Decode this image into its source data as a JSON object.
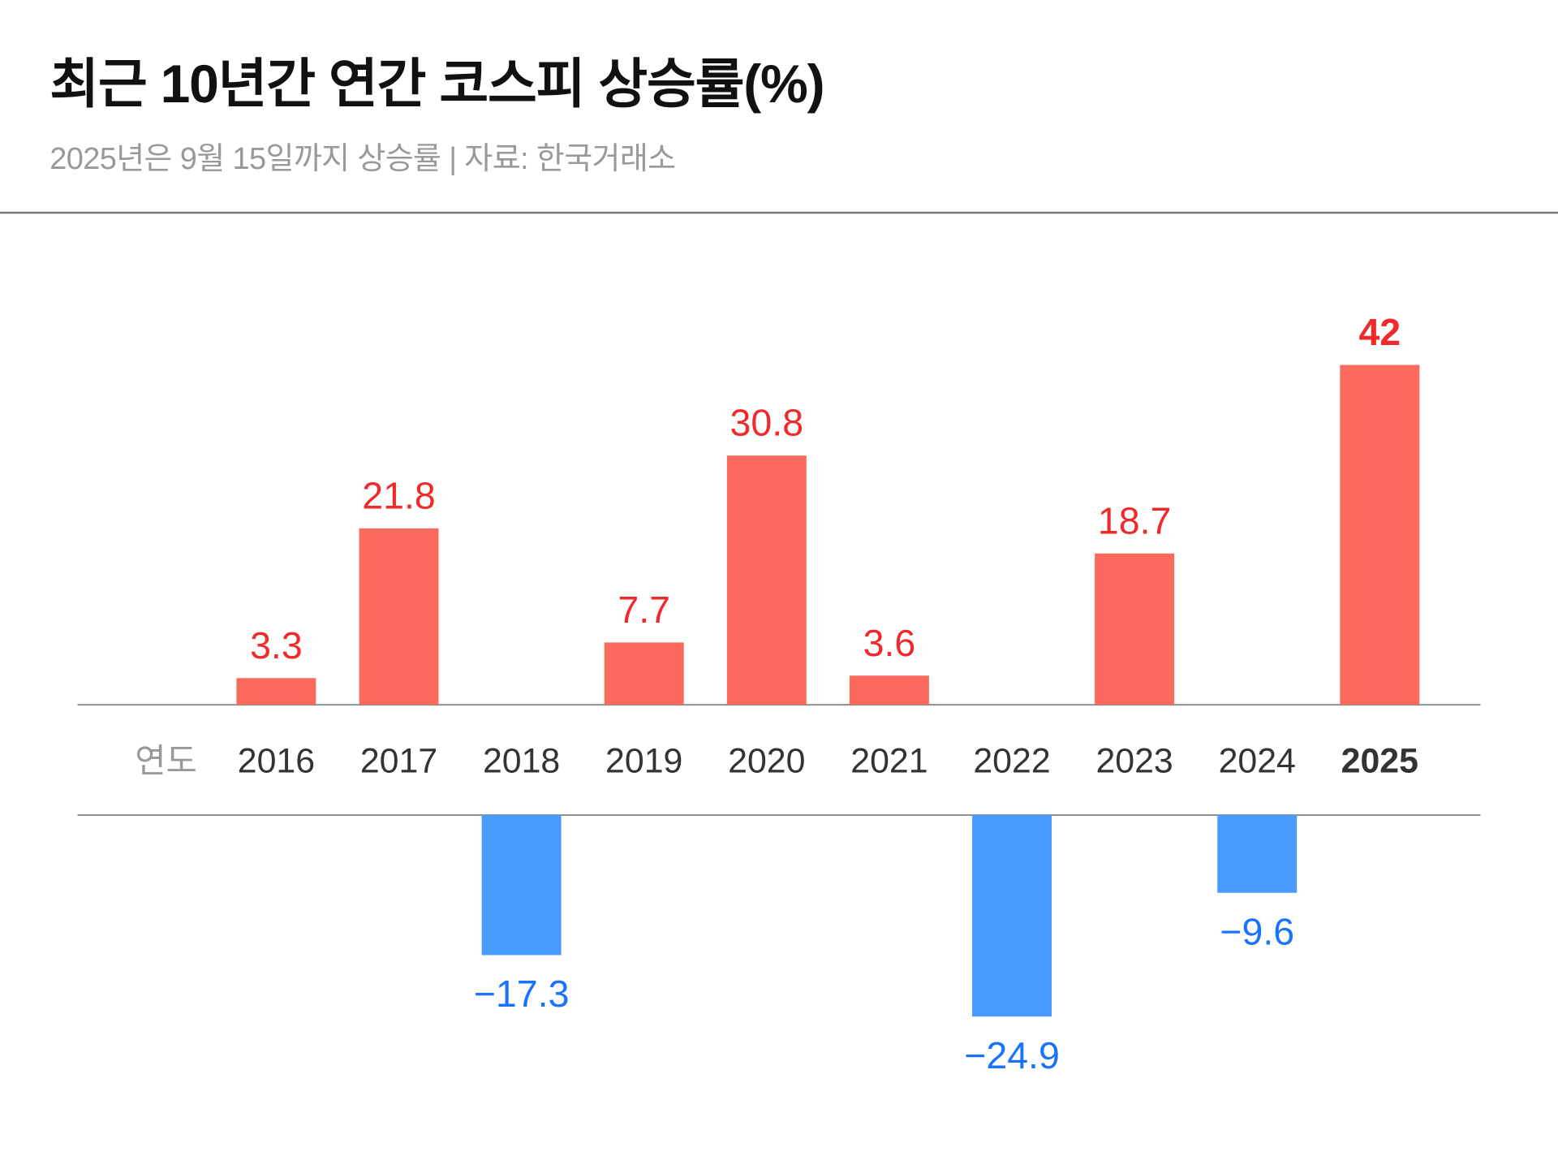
{
  "title": "최근 10년간 연간 코스피 상승률(%)",
  "subtitle": "2025년은 9월 15일까지 상승률 | 자료: 한국거래소",
  "chart_data": {
    "type": "bar",
    "title": "최근 10년간 연간 코스피 상승률(%)",
    "xlabel": "연도",
    "ylabel": "",
    "categories": [
      "2016",
      "2017",
      "2018",
      "2019",
      "2020",
      "2021",
      "2022",
      "2023",
      "2024",
      "2025"
    ],
    "values": [
      3.3,
      21.8,
      -17.3,
      7.7,
      30.8,
      3.6,
      -24.9,
      18.7,
      -9.6,
      42
    ],
    "labels": [
      "3.3",
      "21.8",
      "−17.3",
      "7.7",
      "30.8",
      "3.6",
      "−24.9",
      "18.7",
      "−9.6",
      "42"
    ],
    "highlight": "2025",
    "grid": false,
    "legend": "none",
    "colors": {
      "positive_bar": "#fb6a5d",
      "positive_text": "#f02a2a",
      "negative_bar": "#4a9bff",
      "negative_text": "#1a73ff",
      "axis_label": "#333333",
      "axis_title": "#999999"
    }
  }
}
